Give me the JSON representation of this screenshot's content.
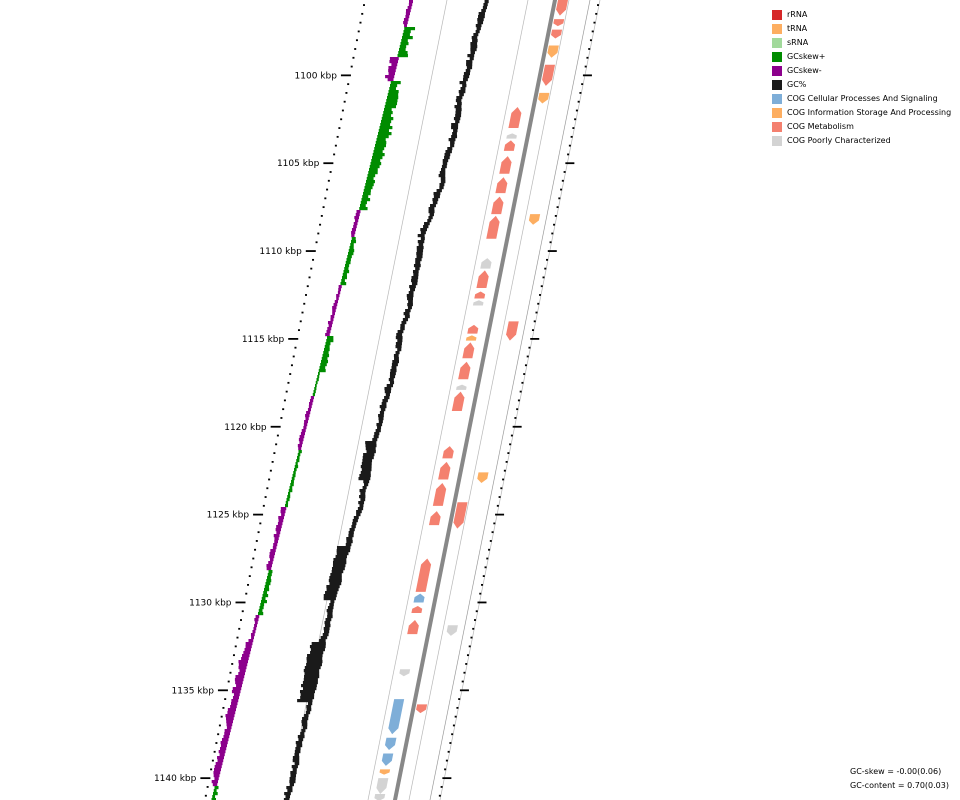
{
  "legend": [
    {
      "label": "rRNA",
      "color": "#d62728"
    },
    {
      "label": "tRNA",
      "color": "#fdae61"
    },
    {
      "label": "sRNA",
      "color": "#a1d99b"
    },
    {
      "label": "GCskew+",
      "color": "#008c00"
    },
    {
      "label": "GCskew-",
      "color": "#8c008c"
    },
    {
      "label": "GC%",
      "color": "#1a1a1a"
    },
    {
      "label": "COG Cellular Processes And Signaling",
      "color": "#7eaed8"
    },
    {
      "label": "COG Information Storage And Processing",
      "color": "#fdae61"
    },
    {
      "label": "COG Metabolism",
      "color": "#f4806f"
    },
    {
      "label": "COG Poorly Characterized",
      "color": "#d3d3d3"
    }
  ],
  "stats": {
    "gc_skew": "GC-skew = -0.00(0.06)",
    "gc_content": "GC-content = 0.70(0.03)"
  },
  "ticks": [
    {
      "label": "1100 kbp",
      "kbp": 1100
    },
    {
      "label": "1105 kbp",
      "kbp": 1105
    },
    {
      "label": "1110 kbp",
      "kbp": 1110
    },
    {
      "label": "1115 kbp",
      "kbp": 1115
    },
    {
      "label": "1120 kbp",
      "kbp": 1120
    },
    {
      "label": "1125 kbp",
      "kbp": 1125
    },
    {
      "label": "1130 kbp",
      "kbp": 1130
    },
    {
      "label": "1135 kbp",
      "kbp": 1135
    },
    {
      "label": "1140 kbp",
      "kbp": 1140
    }
  ],
  "features_forward": [
    {
      "start": 1095.3,
      "end": 1096.6,
      "cat": "COG Metabolism"
    },
    {
      "start": 1096.8,
      "end": 1097.2,
      "cat": "COG Metabolism"
    },
    {
      "start": 1097.4,
      "end": 1097.9,
      "cat": "COG Metabolism"
    },
    {
      "start": 1098.3,
      "end": 1099.0,
      "cat": "COG Information Storage And Processing"
    },
    {
      "start": 1099.4,
      "end": 1100.6,
      "cat": "COG Metabolism"
    },
    {
      "start": 1101.0,
      "end": 1101.6,
      "cat": "COG Information Storage And Processing"
    },
    {
      "start": 1124.3,
      "end": 1125.8,
      "cat": "COG Metabolism"
    },
    {
      "start": 1135.8,
      "end": 1136.3,
      "cat": "COG Metabolism"
    }
  ],
  "features_reverse": [
    {
      "start": 1101.8,
      "end": 1103.0,
      "cat": "COG Metabolism"
    },
    {
      "start": 1103.3,
      "end": 1103.6,
      "cat": "COG Poorly Characterized"
    },
    {
      "start": 1103.7,
      "end": 1104.3,
      "cat": "COG Metabolism"
    },
    {
      "start": 1104.6,
      "end": 1105.6,
      "cat": "COG Metabolism"
    },
    {
      "start": 1105.8,
      "end": 1106.7,
      "cat": "COG Metabolism"
    },
    {
      "start": 1106.9,
      "end": 1107.9,
      "cat": "COG Metabolism"
    },
    {
      "start": 1108.0,
      "end": 1109.3,
      "cat": "COG Metabolism"
    },
    {
      "start": 1110.4,
      "end": 1111.0,
      "cat": "COG Poorly Characterized"
    },
    {
      "start": 1111.1,
      "end": 1112.1,
      "cat": "COG Metabolism"
    },
    {
      "start": 1112.3,
      "end": 1112.7,
      "cat": "COG Metabolism"
    },
    {
      "start": 1112.8,
      "end": 1113.1,
      "cat": "COG Poorly Characterized"
    },
    {
      "start": 1114.2,
      "end": 1114.7,
      "cat": "COG Metabolism"
    },
    {
      "start": 1114.8,
      "end": 1115.1,
      "cat": "COG Information Storage And Processing"
    },
    {
      "start": 1115.2,
      "end": 1116.1,
      "cat": "COG Metabolism"
    },
    {
      "start": 1116.3,
      "end": 1117.3,
      "cat": "COG Metabolism"
    },
    {
      "start": 1117.6,
      "end": 1117.9,
      "cat": "COG Poorly Characterized"
    },
    {
      "start": 1118.0,
      "end": 1119.1,
      "cat": "COG Metabolism"
    },
    {
      "start": 1121.1,
      "end": 1121.8,
      "cat": "COG Metabolism"
    },
    {
      "start": 1122.0,
      "end": 1123.0,
      "cat": "COG Metabolism"
    },
    {
      "start": 1123.2,
      "end": 1124.5,
      "cat": "COG Metabolism"
    },
    {
      "start": 1124.8,
      "end": 1125.6,
      "cat": "COG Metabolism"
    },
    {
      "start": 1127.5,
      "end": 1129.4,
      "cat": "COG Metabolism"
    },
    {
      "start": 1129.5,
      "end": 1130.0,
      "cat": "COG Cellular Processes And Signaling"
    },
    {
      "start": 1130.2,
      "end": 1130.6,
      "cat": "COG Metabolism"
    },
    {
      "start": 1131.0,
      "end": 1131.8,
      "cat": "COG Metabolism"
    }
  ],
  "features_reverse_inner": [
    {
      "start": 1133.8,
      "end": 1134.2,
      "cat": "COG Poorly Characterized"
    },
    {
      "start": 1135.5,
      "end": 1137.5,
      "cat": "COG Cellular Processes And Signaling"
    },
    {
      "start": 1137.7,
      "end": 1138.4,
      "cat": "COG Cellular Processes And Signaling"
    },
    {
      "start": 1138.6,
      "end": 1139.3,
      "cat": "COG Cellular Processes And Signaling"
    },
    {
      "start": 1139.5,
      "end": 1139.8,
      "cat": "COG Information Storage And Processing"
    },
    {
      "start": 1140.0,
      "end": 1140.9,
      "cat": "COG Poorly Characterized"
    },
    {
      "start": 1140.9,
      "end": 1141.3,
      "cat": "COG Poorly Characterized"
    }
  ],
  "features_forward_outer": [
    {
      "start": 1107.9,
      "end": 1108.5,
      "cat": "COG Information Storage And Processing"
    },
    {
      "start": 1114.0,
      "end": 1115.1,
      "cat": "COG Metabolism"
    },
    {
      "start": 1122.6,
      "end": 1123.2,
      "cat": "COG Information Storage And Processing"
    },
    {
      "start": 1131.3,
      "end": 1131.9,
      "cat": "COG Poorly Characterized"
    }
  ]
}
